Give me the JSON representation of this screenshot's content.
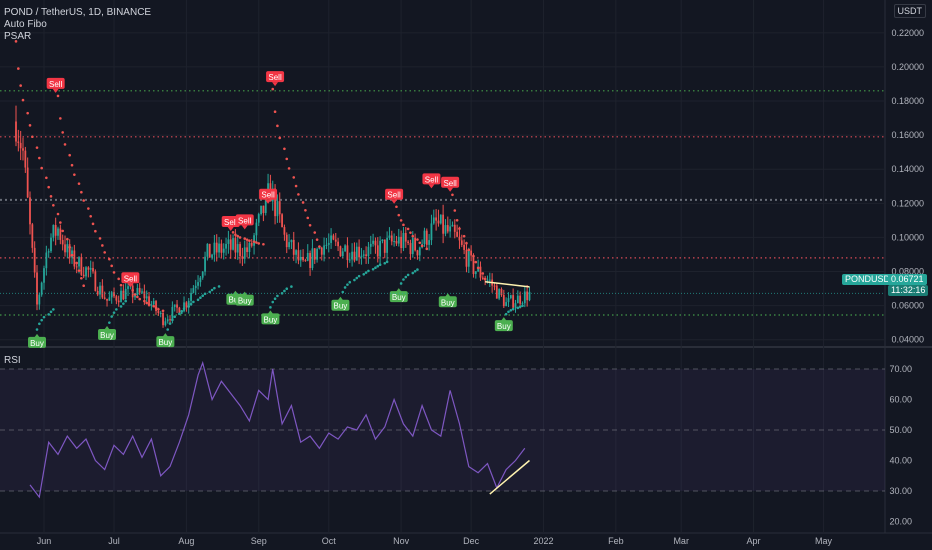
{
  "legend": {
    "symbol_line": "POND / TetherUS, 1D, BINANCE",
    "indicator1": "Auto Fibo",
    "indicator2": "PSAR",
    "rsi_title": "RSI"
  },
  "price_axis": {
    "unit": "USDT",
    "ticks": [
      "0.22000",
      "0.20000",
      "0.18000",
      "0.16000",
      "0.14000",
      "0.12000",
      "0.10000",
      "0.08000",
      "0.06000",
      "0.04000"
    ]
  },
  "rsi_axis": {
    "ticks": [
      "70.00",
      "60.00",
      "50.00",
      "40.00",
      "30.00",
      "20.00"
    ]
  },
  "time_axis": {
    "labels": [
      "Jun",
      "Jul",
      "Aug",
      "Sep",
      "Oct",
      "Nov",
      "Dec",
      "2022",
      "Feb",
      "Mar",
      "Apr",
      "May"
    ]
  },
  "price_badge": {
    "symbol": "PONDUSDT",
    "price": "0.06721",
    "countdown": "11:32:16",
    "color": "#26a69a"
  },
  "signals": {
    "sell_label": "Sell",
    "buy_label": "Buy",
    "sell_color": "#f23645",
    "buy_color": "#4caf50"
  },
  "colors": {
    "up": "#26a69a",
    "down": "#ef5350",
    "rsi_line": "#7e57c2",
    "fib_green": "#4caf50",
    "fib_red": "#f7525f",
    "fib_gray": "#787b86"
  },
  "fib_levels": [
    0.186,
    0.159,
    0.122,
    0.088,
    0.0545
  ],
  "chart_data": {
    "type": "candlestick",
    "symbol": "POND / TetherUS",
    "interval": "1D",
    "exchange": "BINANCE",
    "ylim": [
      0.034,
      0.223
    ],
    "last_price": 0.06721,
    "sells": [
      {
        "x": "2021-06-06",
        "price": 0.183
      },
      {
        "x": "2021-07-08",
        "price": 0.069
      },
      {
        "x": "2021-08-20",
        "price": 0.102
      },
      {
        "x": "2021-08-26",
        "price": 0.103
      },
      {
        "x": "2021-09-05",
        "price": 0.118
      },
      {
        "x": "2021-09-08",
        "price": 0.187
      },
      {
        "x": "2021-10-29",
        "price": 0.118
      },
      {
        "x": "2021-11-14",
        "price": 0.127
      },
      {
        "x": "2021-11-22",
        "price": 0.125
      }
    ],
    "buys": [
      {
        "x": "2021-05-29",
        "price": 0.0452
      },
      {
        "x": "2021-06-28",
        "price": 0.0498
      },
      {
        "x": "2021-07-23",
        "price": 0.0456
      },
      {
        "x": "2021-08-22",
        "price": 0.0705
      },
      {
        "x": "2021-08-26",
        "price": 0.07
      },
      {
        "x": "2021-09-06",
        "price": 0.059
      },
      {
        "x": "2021-10-06",
        "price": 0.067
      },
      {
        "x": "2021-10-31",
        "price": 0.072
      },
      {
        "x": "2021-11-21",
        "price": 0.069
      },
      {
        "x": "2021-12-15",
        "price": 0.055
      }
    ],
    "rsi": {
      "ylim": [
        18,
        78
      ],
      "levels": [
        70,
        50,
        30
      ],
      "values": [
        [
          "2021-05-26",
          32
        ],
        [
          "2021-05-30",
          28
        ],
        [
          "2021-06-03",
          46
        ],
        [
          "2021-06-07",
          42
        ],
        [
          "2021-06-11",
          48
        ],
        [
          "2021-06-15",
          44
        ],
        [
          "2021-06-19",
          47
        ],
        [
          "2021-06-23",
          40
        ],
        [
          "2021-06-27",
          37
        ],
        [
          "2021-07-01",
          45
        ],
        [
          "2021-07-05",
          42
        ],
        [
          "2021-07-09",
          48
        ],
        [
          "2021-07-13",
          41
        ],
        [
          "2021-07-17",
          47
        ],
        [
          "2021-07-21",
          35
        ],
        [
          "2021-07-25",
          38
        ],
        [
          "2021-07-29",
          46
        ],
        [
          "2021-08-02",
          55
        ],
        [
          "2021-08-06",
          68
        ],
        [
          "2021-08-08",
          72
        ],
        [
          "2021-08-12",
          60
        ],
        [
          "2021-08-16",
          66
        ],
        [
          "2021-08-20",
          62
        ],
        [
          "2021-08-24",
          58
        ],
        [
          "2021-08-28",
          53
        ],
        [
          "2021-09-01",
          63
        ],
        [
          "2021-09-05",
          60
        ],
        [
          "2021-09-07",
          70
        ],
        [
          "2021-09-11",
          52
        ],
        [
          "2021-09-15",
          58
        ],
        [
          "2021-09-19",
          46
        ],
        [
          "2021-09-23",
          48
        ],
        [
          "2021-09-27",
          44
        ],
        [
          "2021-10-01",
          49
        ],
        [
          "2021-10-05",
          47
        ],
        [
          "2021-10-09",
          51
        ],
        [
          "2021-10-13",
          50
        ],
        [
          "2021-10-17",
          55
        ],
        [
          "2021-10-21",
          47
        ],
        [
          "2021-10-25",
          51
        ],
        [
          "2021-10-29",
          60
        ],
        [
          "2021-11-02",
          52
        ],
        [
          "2021-11-06",
          48
        ],
        [
          "2021-11-10",
          58
        ],
        [
          "2021-11-14",
          50
        ],
        [
          "2021-11-18",
          48
        ],
        [
          "2021-11-22",
          63
        ],
        [
          "2021-11-26",
          52
        ],
        [
          "2021-11-30",
          38
        ],
        [
          "2021-12-04",
          36
        ],
        [
          "2021-12-08",
          39
        ],
        [
          "2021-12-12",
          31
        ],
        [
          "2021-12-16",
          37
        ],
        [
          "2021-12-20",
          40
        ],
        [
          "2021-12-24",
          44
        ]
      ]
    },
    "annotations": [
      {
        "type": "trendline",
        "panel": "price",
        "from": [
          "2021-12-07",
          0.074
        ],
        "to": [
          "2021-12-26",
          0.071
        ]
      },
      {
        "type": "trendline",
        "panel": "rsi",
        "from": [
          "2021-12-09",
          29
        ],
        "to": [
          "2021-12-26",
          40
        ]
      }
    ]
  }
}
